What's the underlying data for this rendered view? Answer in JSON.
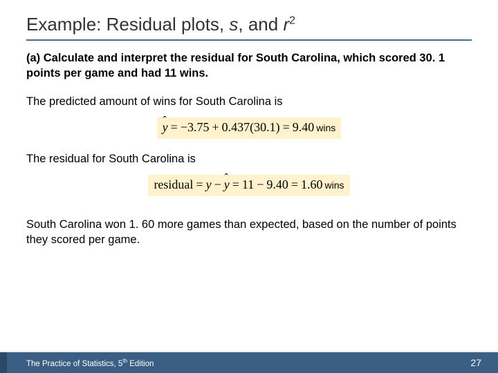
{
  "title": {
    "prefix": "Example: Residual plots, ",
    "s": "s",
    "mid": ", and ",
    "r": "r",
    "exp": "2"
  },
  "question": "(a) Calculate and interpret the residual for South Carolina, which scored 30. 1 points per game and had 11 wins.",
  "line_predicted": "The predicted amount of wins for South Carolina is",
  "eq1": {
    "lhs_sym": "y",
    "expr_a": " −3.75",
    "op1": "+",
    "expr_b": "0.437(30.1)",
    "eq": "=",
    "result": "9.40",
    "units": "wins"
  },
  "line_residual": "The residual for South Carolina is",
  "eq2": {
    "lhs": "residual",
    "eq1": "=",
    "mid_a": "y",
    "minus": "−",
    "mid_b": "y",
    "eq2": "=",
    "rhs_a": "11",
    "rhs_minus": "−",
    "rhs_b": "9.40",
    "eq3": "=",
    "result": "1.60",
    "units": "wins"
  },
  "conclusion": "South Carolina won 1. 60 more games than expected, based on the number of points they scored per game.",
  "footer": {
    "book_a": "The Practice of Statistics, 5",
    "book_sup": "th",
    "book_b": " Edition",
    "page": "27"
  },
  "colors": {
    "footer_bg": "#3b5e85",
    "highlight": "#fff2cc",
    "rule": "#4a6a8a"
  }
}
